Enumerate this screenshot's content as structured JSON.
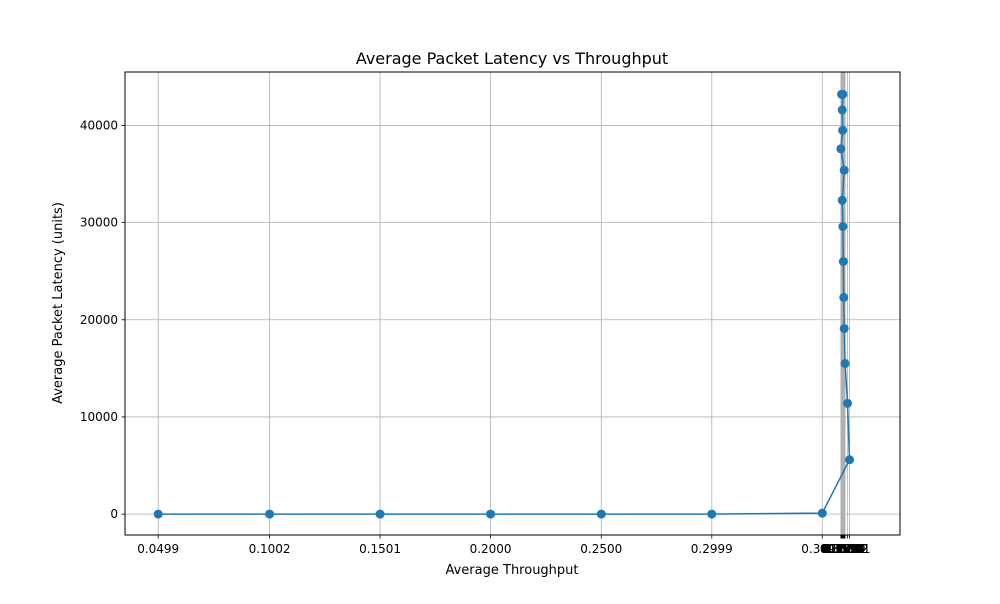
{
  "chart_data": {
    "type": "line",
    "title": "Average Packet Latency vs Throughput",
    "xlabel": "Average Throughput",
    "ylabel": "Average Packet Latency (units)",
    "xlim": [
      0.0349,
      0.3849
    ],
    "ylim": [
      -2150,
      45500
    ],
    "grid": true,
    "marker": "circle",
    "color": "#1f77b4",
    "grid_color": "#b0b0b0",
    "x_tick_labels": [
      "0.0499",
      "0.1002",
      "0.1501",
      "0.2000",
      "0.2500",
      "0.2999",
      "0.3498",
      "0.3582",
      "0.3584",
      "0.3585",
      "0.3586",
      "0.3587",
      "0.3588",
      "0.3590",
      "0.3591",
      "0.3593",
      "0.3595",
      "0.3597",
      "0.3599",
      "0.3601",
      "0.3612",
      "0.3621"
    ],
    "x_tick_values": [
      0.0499,
      0.1002,
      0.1501,
      0.2,
      0.25,
      0.2999,
      0.3498,
      0.3582,
      0.3584,
      0.3585,
      0.3586,
      0.3587,
      0.3588,
      0.359,
      0.3591,
      0.3593,
      0.3595,
      0.3597,
      0.3599,
      0.3601,
      0.3612,
      0.3621
    ],
    "y_ticks": [
      0,
      10000,
      20000,
      30000,
      40000
    ],
    "y_tick_labels": [
      "0",
      "10000",
      "20000",
      "30000",
      "40000"
    ],
    "series": [
      {
        "x": [
          0.0499,
          0.1002,
          0.1501,
          0.2,
          0.25,
          0.2999,
          0.3498,
          0.3621,
          0.3612,
          0.3601,
          0.3597,
          0.3595,
          0.3593,
          0.3591,
          0.3588,
          0.3597,
          0.3582,
          0.359,
          0.3588,
          0.3591,
          0.3585,
          0.3587
        ],
        "y": [
          0,
          0,
          0,
          0,
          0,
          0,
          100,
          5600,
          11400,
          15500,
          19100,
          22300,
          26000,
          29600,
          32300,
          35400,
          37600,
          39500,
          41600,
          43200,
          43200,
          43200
        ]
      }
    ]
  }
}
